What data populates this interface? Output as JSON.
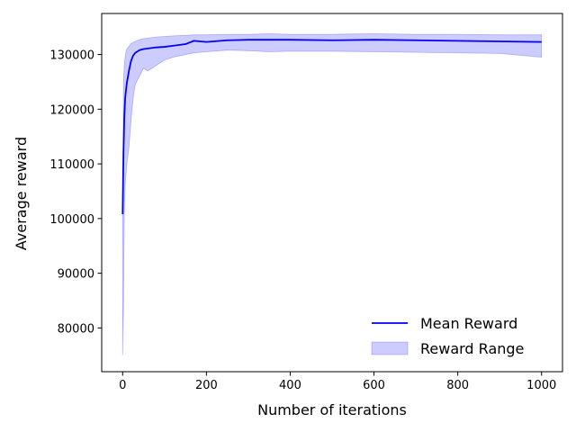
{
  "chart_data": {
    "type": "line",
    "xlabel": "Number of iterations",
    "ylabel": "Average reward",
    "xlim": [
      -50,
      1050
    ],
    "ylim": [
      72000,
      137500
    ],
    "xticks": [
      0,
      200,
      400,
      600,
      800,
      1000
    ],
    "yticks": [
      80000,
      90000,
      100000,
      110000,
      120000,
      130000
    ],
    "grid": false,
    "legend_position": "bottom-right",
    "legend": [
      {
        "label": "Mean Reward",
        "kind": "line",
        "color": "#0000ff"
      },
      {
        "label": "Reward Range",
        "kind": "patch",
        "color": "#0000ff"
      }
    ],
    "series": [
      {
        "name": "Mean Reward",
        "kind": "line",
        "color": "#0000ff",
        "x": [
          0,
          2,
          4,
          6,
          8,
          10,
          15,
          20,
          25,
          30,
          40,
          50,
          60,
          80,
          100,
          120,
          150,
          170,
          200,
          250,
          300,
          350,
          400,
          500,
          600,
          700,
          800,
          900,
          1000
        ],
        "y": [
          100800,
          112000,
          118500,
          122000,
          123500,
          124800,
          127000,
          128800,
          129800,
          130300,
          130800,
          131000,
          131100,
          131300,
          131400,
          131600,
          131900,
          132500,
          132300,
          132600,
          132700,
          132700,
          132700,
          132600,
          132700,
          132600,
          132500,
          132400,
          132300
        ]
      },
      {
        "name": "Reward Range",
        "kind": "band",
        "color": "#0000ff",
        "opacity": 0.2,
        "x": [
          0,
          2,
          4,
          6,
          8,
          10,
          15,
          20,
          25,
          30,
          40,
          50,
          60,
          80,
          100,
          120,
          150,
          170,
          200,
          250,
          300,
          350,
          400,
          500,
          600,
          700,
          800,
          900,
          1000
        ],
        "lower": [
          75000,
          84000,
          101000,
          106000,
          108000,
          110000,
          113000,
          118000,
          122000,
          124500,
          126000,
          127500,
          127000,
          128000,
          129000,
          129500,
          130000,
          130300,
          130500,
          130800,
          130700,
          130500,
          130600,
          130600,
          130500,
          130400,
          130300,
          130200,
          129500
        ],
        "upper": [
          102000,
          125000,
          128000,
          129500,
          130500,
          131000,
          131500,
          132000,
          132200,
          132400,
          132700,
          132900,
          133000,
          133200,
          133300,
          133400,
          133500,
          133600,
          133600,
          133700,
          133700,
          133800,
          133700,
          133700,
          133800,
          133700,
          133700,
          133600,
          133600
        ]
      }
    ]
  }
}
